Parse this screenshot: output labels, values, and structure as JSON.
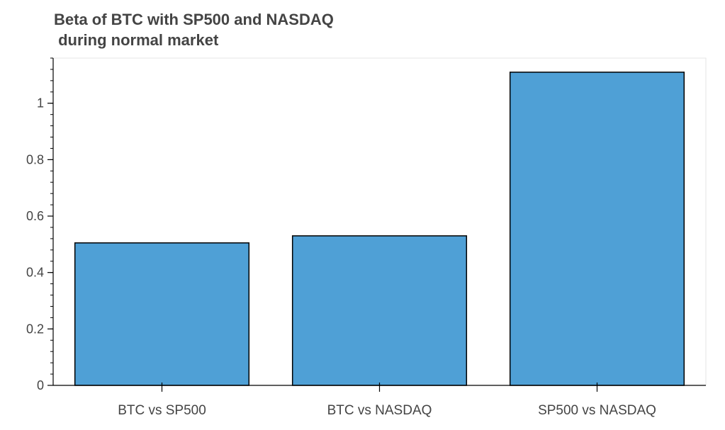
{
  "chart_data": {
    "type": "bar",
    "title": "Beta of BTC with SP500 and NASDAQ\n during normal market",
    "xlabel": "",
    "ylabel": "",
    "categories": [
      "BTC vs SP500",
      "BTC vs NASDAQ",
      "SP500 vs NASDAQ"
    ],
    "values": [
      0.505,
      0.53,
      1.11
    ],
    "ylim": [
      0,
      1.16
    ],
    "yticks": [
      0,
      0.2,
      0.4,
      0.6,
      0.8,
      1
    ],
    "ytick_labels": [
      "0",
      "0.2",
      "0.4",
      "0.6",
      "0.8",
      "1"
    ],
    "grid": false,
    "legend": "none",
    "bar_color": "#4fa0d6",
    "bar_edge_color": "#000000"
  }
}
